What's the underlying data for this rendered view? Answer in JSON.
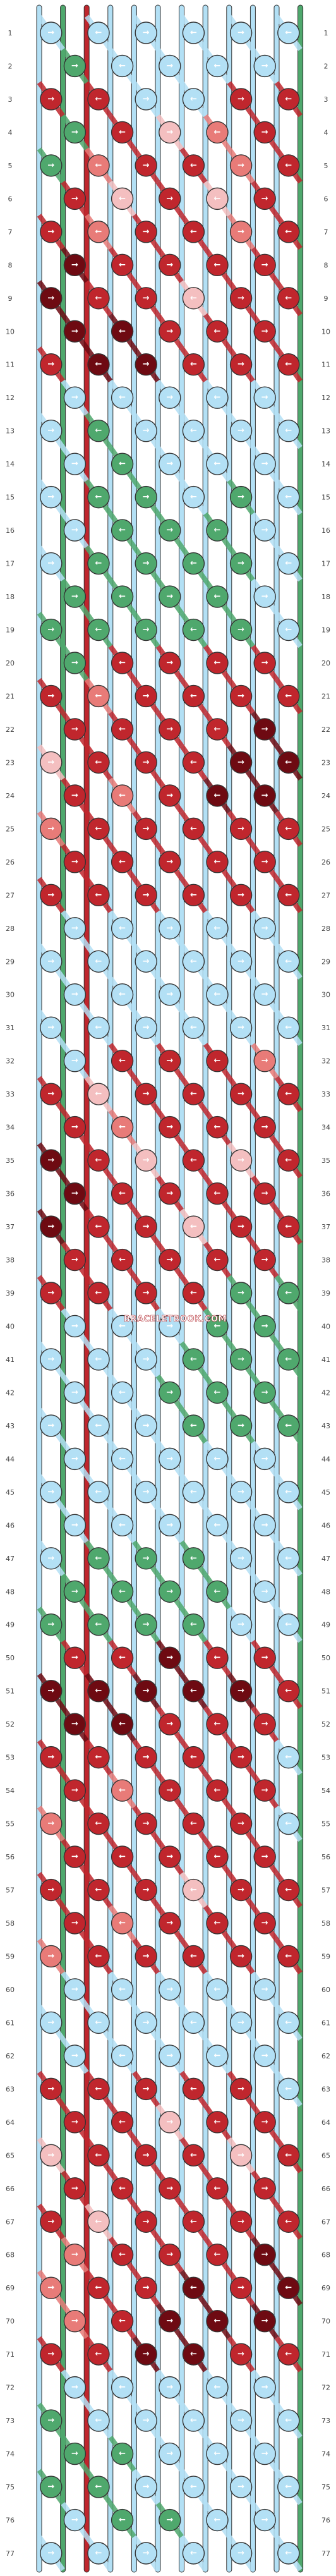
{
  "pattern": {
    "title": "",
    "watermark": "BRACELETBOOK.COM",
    "row_count": 77,
    "row_labels_left": [
      "1",
      "2",
      "3",
      "4",
      "5",
      "6",
      "7",
      "8",
      "9",
      "10",
      "11",
      "12",
      "13",
      "14",
      "15",
      "16",
      "17",
      "18",
      "19",
      "20",
      "21",
      "22",
      "23",
      "24",
      "25",
      "26",
      "27",
      "28",
      "29",
      "30",
      "31",
      "32",
      "33",
      "34",
      "35",
      "36",
      "37",
      "38",
      "39",
      "40",
      "41",
      "42",
      "43",
      "44",
      "45",
      "46",
      "47",
      "48",
      "49",
      "50",
      "51",
      "52",
      "53",
      "54",
      "55",
      "56",
      "57",
      "58",
      "59",
      "60",
      "61",
      "62",
      "63",
      "64",
      "65",
      "66",
      "67",
      "68",
      "69",
      "70",
      "71",
      "72",
      "73",
      "74",
      "75",
      "76",
      "77"
    ],
    "row_labels_right": [
      "1",
      "2",
      "3",
      "4",
      "5",
      "6",
      "7",
      "8",
      "9",
      "10",
      "11",
      "12",
      "13",
      "14",
      "15",
      "16",
      "17",
      "18",
      "19",
      "20",
      "21",
      "22",
      "23",
      "24",
      "25",
      "26",
      "27",
      "28",
      "29",
      "30",
      "31",
      "32",
      "33",
      "34",
      "35",
      "36",
      "37",
      "38",
      "39",
      "40",
      "41",
      "42",
      "43",
      "44",
      "45",
      "46",
      "47",
      "48",
      "49",
      "50",
      "51",
      "52",
      "53",
      "54",
      "55",
      "56",
      "57",
      "58",
      "59",
      "60",
      "61",
      "62",
      "63",
      "64",
      "65",
      "66",
      "67",
      "68",
      "69",
      "70",
      "71",
      "72",
      "73",
      "74",
      "75",
      "76",
      "77"
    ]
  },
  "colors": {
    "light_blue": "#b3e0f5",
    "green": "#4fa86d",
    "red": "#c0262d",
    "dark_red": "#6e0a12",
    "salmon": "#e87b78",
    "pink": "#f4bfc0",
    "strand_outline": "#333333"
  },
  "strands": [
    "light_blue",
    "green",
    "red",
    "light_blue",
    "light_blue",
    "light_blue",
    "light_blue",
    "light_blue",
    "light_blue",
    "light_blue",
    "light_blue",
    "green"
  ],
  "knot_rows": [
    [
      "light_blue",
      "light_blue",
      "light_blue",
      "light_blue",
      "light_blue",
      "light_blue"
    ],
    [
      "green",
      "light_blue",
      "light_blue",
      "light_blue",
      "light_blue"
    ],
    [
      "red",
      "red",
      "light_blue",
      "light_blue",
      "red",
      "red"
    ],
    [
      "green",
      "red",
      "pink",
      "salmon",
      "red"
    ],
    [
      "green",
      "salmon",
      "red",
      "red",
      "salmon",
      "red"
    ],
    [
      "red",
      "pink",
      "red",
      "pink",
      "red"
    ],
    [
      "red",
      "salmon",
      "red",
      "red",
      "salmon",
      "red"
    ],
    [
      "dark_red",
      "red",
      "red",
      "red",
      "red"
    ],
    [
      "dark_red",
      "red",
      "red",
      "pink",
      "red",
      "red"
    ],
    [
      "dark_red",
      "dark_red",
      "red",
      "red",
      "red"
    ],
    [
      "red",
      "dark_red",
      "dark_red",
      "red",
      "red",
      "red"
    ],
    [
      "light_blue",
      "light_blue",
      "light_blue",
      "light_blue",
      "light_blue"
    ],
    [
      "light_blue",
      "green",
      "light_blue",
      "light_blue",
      "light_blue",
      "light_blue"
    ],
    [
      "light_blue",
      "green",
      "light_blue",
      "light_blue",
      "light_blue"
    ],
    [
      "light_blue",
      "green",
      "green",
      "light_blue",
      "green",
      "light_blue"
    ],
    [
      "light_blue",
      "green",
      "green",
      "green",
      "light_blue"
    ],
    [
      "light_blue",
      "green",
      "green",
      "green",
      "green",
      "light_blue"
    ],
    [
      "green",
      "green",
      "green",
      "green",
      "light_blue"
    ],
    [
      "green",
      "green",
      "green",
      "green",
      "green",
      "light_blue"
    ],
    [
      "green",
      "red",
      "red",
      "red",
      "red"
    ],
    [
      "red",
      "salmon",
      "red",
      "red",
      "red",
      "red"
    ],
    [
      "red",
      "red",
      "red",
      "red",
      "dark_red"
    ],
    [
      "pink",
      "red",
      "red",
      "red",
      "dark_red",
      "dark_red"
    ],
    [
      "red",
      "salmon",
      "red",
      "dark_red",
      "dark_red"
    ],
    [
      "salmon",
      "red",
      "red",
      "red",
      "red",
      "red"
    ],
    [
      "red",
      "red",
      "red",
      "red",
      "red"
    ],
    [
      "red",
      "red",
      "red",
      "red",
      "red",
      "red"
    ],
    [
      "light_blue",
      "light_blue",
      "light_blue",
      "light_blue",
      "light_blue"
    ],
    [
      "light_blue",
      "light_blue",
      "light_blue",
      "light_blue",
      "light_blue",
      "light_blue"
    ],
    [
      "light_blue",
      "light_blue",
      "light_blue",
      "light_blue",
      "light_blue"
    ],
    [
      "light_blue",
      "light_blue",
      "light_blue",
      "light_blue",
      "light_blue",
      "light_blue"
    ],
    [
      "light_blue",
      "red",
      "red",
      "red",
      "salmon"
    ],
    [
      "red",
      "pink",
      "red",
      "red",
      "red",
      "red"
    ],
    [
      "red",
      "salmon",
      "red",
      "red",
      "red"
    ],
    [
      "dark_red",
      "red",
      "pink",
      "red",
      "pink",
      "red"
    ],
    [
      "dark_red",
      "red",
      "red",
      "red",
      "red"
    ],
    [
      "dark_red",
      "red",
      "red",
      "pink",
      "red",
      "red"
    ],
    [
      "red",
      "red",
      "red",
      "red",
      "red"
    ],
    [
      "red",
      "red",
      "red",
      "red",
      "green",
      "green"
    ],
    [
      "light_blue",
      "light_blue",
      "light_blue",
      "green",
      "green"
    ],
    [
      "light_blue",
      "light_blue",
      "light_blue",
      "green",
      "green",
      "green"
    ],
    [
      "light_blue",
      "light_blue",
      "green",
      "green",
      "green"
    ],
    [
      "light_blue",
      "light_blue",
      "light_blue",
      "green",
      "green",
      "green"
    ],
    [
      "light_blue",
      "light_blue",
      "light_blue",
      "light_blue",
      "light_blue"
    ],
    [
      "light_blue",
      "light_blue",
      "light_blue",
      "light_blue",
      "light_blue",
      "light_blue"
    ],
    [
      "light_blue",
      "light_blue",
      "light_blue",
      "light_blue",
      "light_blue"
    ],
    [
      "light_blue",
      "green",
      "green",
      "green",
      "light_blue",
      "light_blue"
    ],
    [
      "green",
      "green",
      "green",
      "green",
      "light_blue"
    ],
    [
      "green",
      "green",
      "green",
      "green",
      "light_blue",
      "light_blue"
    ],
    [
      "red",
      "red",
      "dark_red",
      "red",
      "red"
    ],
    [
      "dark_red",
      "dark_red",
      "dark_red",
      "dark_red",
      "dark_red",
      "red"
    ],
    [
      "dark_red",
      "dark_red",
      "red",
      "red",
      "red"
    ],
    [
      "red",
      "red",
      "red",
      "red",
      "red",
      "light_blue"
    ],
    [
      "red",
      "salmon",
      "red",
      "red",
      "red"
    ],
    [
      "salmon",
      "red",
      "red",
      "red",
      "red",
      "light_blue"
    ],
    [
      "red",
      "red",
      "red",
      "red",
      "red"
    ],
    [
      "red",
      "red",
      "red",
      "pink",
      "red",
      "red"
    ],
    [
      "red",
      "salmon",
      "red",
      "red",
      "red"
    ],
    [
      "salmon",
      "red",
      "red",
      "red",
      "red",
      "red"
    ],
    [
      "light_blue",
      "light_blue",
      "light_blue",
      "light_blue",
      "light_blue"
    ],
    [
      "light_blue",
      "light_blue",
      "light_blue",
      "light_blue",
      "light_blue",
      "light_blue"
    ],
    [
      "light_blue",
      "light_blue",
      "light_blue",
      "light_blue",
      "light_blue"
    ],
    [
      "red",
      "red",
      "red",
      "red",
      "red",
      "light_blue"
    ],
    [
      "red",
      "red",
      "pink",
      "red",
      "red"
    ],
    [
      "pink",
      "red",
      "red",
      "red",
      "pink",
      "red"
    ],
    [
      "red",
      "red",
      "red",
      "red",
      "red"
    ],
    [
      "red",
      "pink",
      "red",
      "red",
      "red",
      "red"
    ],
    [
      "salmon",
      "red",
      "red",
      "red",
      "dark_red"
    ],
    [
      "salmon",
      "red",
      "red",
      "dark_red",
      "red",
      "dark_red"
    ],
    [
      "salmon",
      "red",
      "dark_red",
      "dark_red",
      "dark_red"
    ],
    [
      "red",
      "red",
      "dark_red",
      "dark_red",
      "red",
      "red"
    ],
    [
      "light_blue",
      "light_blue",
      "light_blue",
      "light_blue",
      "light_blue"
    ],
    [
      "green",
      "light_blue",
      "light_blue",
      "light_blue",
      "light_blue",
      "light_blue"
    ],
    [
      "green",
      "green",
      "light_blue",
      "light_blue",
      "light_blue"
    ],
    [
      "green",
      "green",
      "light_blue",
      "light_blue",
      "light_blue",
      "light_blue"
    ],
    [
      "light_blue",
      "green",
      "green",
      "light_blue",
      "light_blue"
    ],
    [
      "light_blue",
      "light_blue",
      "light_blue",
      "light_blue",
      "light_blue",
      "light_blue"
    ]
  ]
}
